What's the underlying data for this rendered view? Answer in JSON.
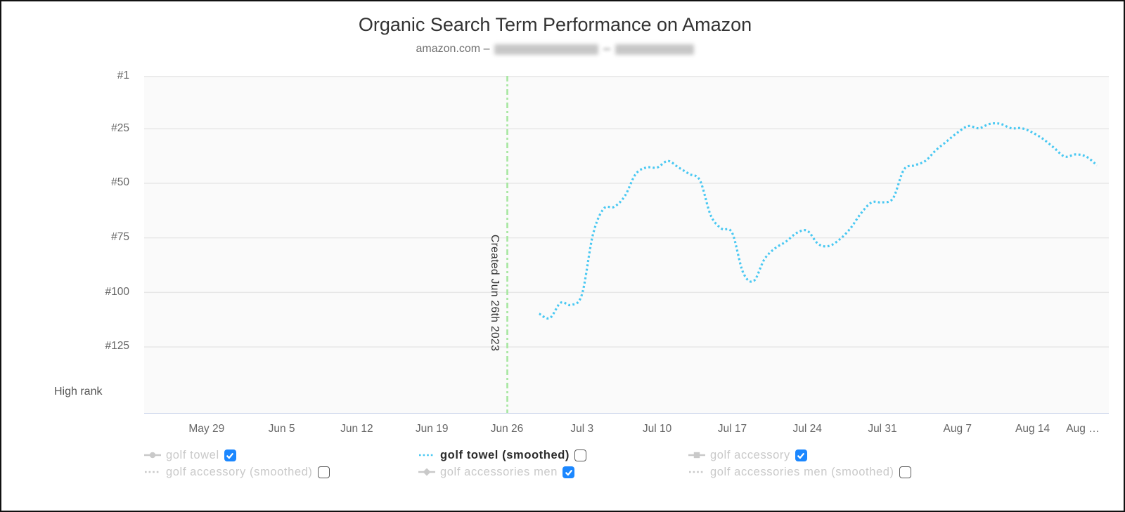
{
  "header": {
    "title": "Organic Search Term Performance on Amazon",
    "subtitle_prefix": "amazon.com –"
  },
  "colors": {
    "series_blue": "#49c8f2",
    "created_line_green": "#a6e79f",
    "checkbox_blue": "#1b87ff",
    "grid_line": "#e7e7e7",
    "plot_background": "#fafafa",
    "axis_line": "#ccd6eb",
    "legend_gray": "#c9c9c9",
    "tick_text": "#666666",
    "title_text": "#333333"
  },
  "chart_data": {
    "type": "line",
    "title": "Organic Search Term Performance on Amazon",
    "subtitle": "amazon.com – [redacted] - [redacted]",
    "x_tick_labels": [
      "May 29",
      "Jun 5",
      "Jun 12",
      "Jun 19",
      "Jun 26",
      "Jul 3",
      "Jul 10",
      "Jul 17",
      "Jul 24",
      "Jul 31",
      "Aug 7",
      "Aug 14",
      "Aug …"
    ],
    "y_tick_labels": [
      "#1",
      "#25",
      "#50",
      "#75",
      "#100",
      "#125"
    ],
    "y_tick_ranks": [
      1,
      25,
      50,
      75,
      100,
      125
    ],
    "ylabel": "High rank",
    "y_axis_inverted": true,
    "grid": true,
    "legend_position": "bottom",
    "annotation": {
      "label": "Created Jun 26th 2023",
      "x": "Jun 26",
      "style": "dash-dot-green-vertical"
    },
    "series": [
      {
        "name": "golf towel (smoothed)",
        "style": "dotted",
        "color": "#49c8f2",
        "points": [
          [
            "Jun 29",
            110
          ],
          [
            "Jun 30",
            112
          ],
          [
            "Jul 1",
            105
          ],
          [
            "Jul 2",
            106
          ],
          [
            "Jul 3",
            101
          ],
          [
            "Jul 4",
            74
          ],
          [
            "Jul 5",
            62
          ],
          [
            "Jul 6",
            61
          ],
          [
            "Jul 7",
            56
          ],
          [
            "Jul 8",
            46
          ],
          [
            "Jul 9",
            43
          ],
          [
            "Jul 10",
            43
          ],
          [
            "Jul 11",
            40
          ],
          [
            "Jul 12",
            43
          ],
          [
            "Jul 13",
            46
          ],
          [
            "Jul 14",
            49
          ],
          [
            "Jul 15",
            65
          ],
          [
            "Jul 16",
            71
          ],
          [
            "Jul 17",
            73
          ],
          [
            "Jul 18",
            91
          ],
          [
            "Jul 19",
            95
          ],
          [
            "Jul 20",
            85
          ],
          [
            "Jul 21",
            80
          ],
          [
            "Jul 22",
            77
          ],
          [
            "Jul 23",
            73
          ],
          [
            "Jul 24",
            72
          ],
          [
            "Jul 25",
            78
          ],
          [
            "Jul 26",
            79
          ],
          [
            "Jul 27",
            76
          ],
          [
            "Jul 28",
            71
          ],
          [
            "Jul 29",
            64
          ],
          [
            "Jul 30",
            59
          ],
          [
            "Jul 31",
            59
          ],
          [
            "Aug 1",
            57
          ],
          [
            "Aug 2",
            44
          ],
          [
            "Aug 3",
            42
          ],
          [
            "Aug 4",
            40
          ],
          [
            "Aug 5",
            35
          ],
          [
            "Aug 6",
            31
          ],
          [
            "Aug 7",
            27
          ],
          [
            "Aug 8",
            24
          ],
          [
            "Aug 9",
            25
          ],
          [
            "Aug 10",
            23
          ],
          [
            "Aug 11",
            23
          ],
          [
            "Aug 12",
            25
          ],
          [
            "Aug 13",
            25
          ],
          [
            "Aug 14",
            27
          ],
          [
            "Aug 15",
            30
          ],
          [
            "Aug 16",
            34
          ],
          [
            "Aug 17",
            38
          ],
          [
            "Aug 18",
            37
          ],
          [
            "Aug 19",
            38
          ],
          [
            "Aug 20",
            42
          ]
        ]
      }
    ]
  },
  "legend": {
    "columns": [
      [
        {
          "label": "golf towel",
          "marker": "line-circle",
          "color": "#c9c9c9",
          "checked": true,
          "active": false
        },
        {
          "label": "golf accessory (smoothed)",
          "marker": "dotted",
          "color": "#c9c9c9",
          "checked": false,
          "active": false
        }
      ],
      [
        {
          "label": "golf towel (smoothed)",
          "marker": "dotted",
          "color": "#49c8f2",
          "checked": false,
          "active": true
        },
        {
          "label": "golf accessories men",
          "marker": "line-diamond",
          "color": "#c9c9c9",
          "checked": true,
          "active": false
        }
      ],
      [
        {
          "label": "golf accessory",
          "marker": "line-square",
          "color": "#c9c9c9",
          "checked": true,
          "active": false
        },
        {
          "label": "golf accessories men (smoothed)",
          "marker": "dotted",
          "color": "#c9c9c9",
          "checked": false,
          "active": false
        }
      ]
    ]
  }
}
